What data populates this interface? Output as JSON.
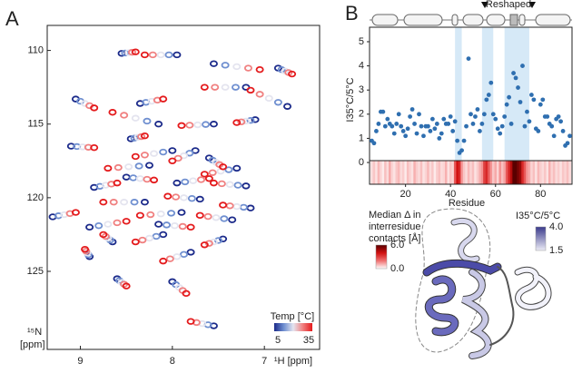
{
  "chart_data": [
    {
      "type": "nmr",
      "panel": "A",
      "xlabel": "¹H [ppm]",
      "ylabel": [
        "¹⁵N",
        "[ppm]"
      ],
      "xlim": [
        9.36,
        6.4
      ],
      "ylim": [
        130.3,
        108.3
      ],
      "xticks": [
        9,
        8,
        7
      ],
      "yticks": [
        110,
        115,
        120,
        125
      ],
      "series": [
        {
          "name": "5",
          "color": "#1b2a8a",
          "x": [
            8.55,
            7.95,
            7.55,
            6.85,
            7.2,
            6.75,
            9.05,
            8.15,
            7.55,
            8.0,
            9.1,
            7.3,
            7.2,
            8.85,
            8.3,
            7.7,
            9.3,
            8.9,
            7.9,
            7.35,
            8.1,
            7.8,
            8.6,
            8.0,
            7.55,
            8.25,
            7.75,
            8.5,
            7.95,
            8.15,
            8.65,
            7.45,
            8.35,
            7.1,
            8.9,
            7.15,
            8.45,
            7.6
          ],
          "values": [
            110.2,
            110.3,
            110.9,
            111.2,
            112.5,
            113.8,
            113.3,
            115.0,
            115.0,
            116.8,
            116.5,
            118.0,
            119.2,
            119.3,
            120.3,
            120.1,
            121.3,
            122.0,
            121.0,
            121.5,
            122.5,
            123.7,
            125.5,
            125.7,
            128.7,
            117.8,
            116.8,
            118.6,
            119.0,
            121.8,
            123.0,
            122.8,
            113.6,
            114.7,
            124.0,
            120.7,
            116.0,
            117.3
          ]
        },
        {
          "name": "35",
          "color": "#e41a1c",
          "x": [
            8.4,
            8.3,
            7.05,
            6.7,
            7.65,
            7.15,
            8.85,
            8.65,
            7.9,
            8.4,
            8.85,
            7.65,
            7.55,
            8.6,
            8.75,
            8.05,
            9.05,
            8.5,
            8.35,
            7.7,
            8.4,
            8.1,
            8.5,
            7.85,
            7.8,
            8.7,
            8.0,
            8.2,
            7.6,
            7.8,
            8.75,
            7.65,
            8.1,
            7.3,
            8.95,
            7.45,
            8.3,
            7.45
          ],
          "values": [
            110.1,
            110.3,
            111.3,
            111.6,
            112.5,
            112.7,
            113.9,
            114.2,
            115.1,
            117.2,
            116.6,
            118.4,
            119.0,
            119.0,
            120.3,
            119.9,
            121.0,
            121.6,
            121.2,
            121.2,
            123.0,
            124.3,
            126.0,
            126.5,
            128.4,
            118.0,
            117.5,
            118.8,
            118.7,
            122.0,
            122.5,
            123.2,
            113.3,
            114.9,
            123.5,
            120.5,
            115.8,
            117.9
          ]
        }
      ],
      "colorbar": {
        "title": "Temp [°C]",
        "colors": [
          "#1b2a8a",
          "#6f8fd0",
          "#e4e4ef",
          "#f08080",
          "#e41a1c"
        ]
      }
    },
    {
      "type": "scatter",
      "panel": "B",
      "xlabel": "Residue",
      "ylabel": "I35°C/5°C",
      "annotation": "Reshaped",
      "xlim": [
        4,
        94
      ],
      "ylim": [
        -0.9,
        5.6
      ],
      "xticks": [
        20,
        40,
        60,
        80
      ],
      "yticks": [
        0,
        1,
        2,
        3,
        4,
        5
      ],
      "color": "#2f6fb0",
      "highlights": [
        [
          42,
          45
        ],
        [
          54,
          59
        ],
        [
          64,
          75
        ]
      ],
      "x": [
        5,
        6,
        7,
        8,
        9,
        10,
        11,
        12,
        13,
        14,
        15,
        16,
        17,
        18,
        19,
        20,
        21,
        22,
        23,
        24,
        25,
        26,
        27,
        28,
        29,
        30,
        31,
        32,
        33,
        34,
        35,
        36,
        37,
        38,
        39,
        40,
        41,
        42,
        43,
        44,
        45,
        46,
        47,
        48,
        49,
        50,
        51,
        52,
        53,
        54,
        55,
        56,
        57,
        58,
        59,
        60,
        61,
        62,
        63,
        64,
        65,
        66,
        67,
        68,
        69,
        70,
        71,
        72,
        73,
        74,
        75,
        76,
        77,
        78,
        79,
        80,
        81,
        82,
        83,
        84,
        85,
        86,
        87,
        88,
        89,
        90,
        91,
        92,
        93
      ],
      "values": [
        0.9,
        0.8,
        1.3,
        1.6,
        2.1,
        2.1,
        1.5,
        1.8,
        1.6,
        1.5,
        1.2,
        1.6,
        2.0,
        1.5,
        1.3,
        1.1,
        1.4,
        1.9,
        2.2,
        1.6,
        1.2,
        2.0,
        1.5,
        1.1,
        1.5,
        1.5,
        1.3,
        1.8,
        1.4,
        1.6,
        1.0,
        1.2,
        1.8,
        1.6,
        1.6,
        1.9,
        1.3,
        1.7,
        0.9,
        0.4,
        0.5,
        0.9,
        1.5,
        4.3,
        2.0,
        1.6,
        1.9,
        2.2,
        1.3,
        1.6,
        2.0,
        2.6,
        2.8,
        3.3,
        2.0,
        1.8,
        1.4,
        1.2,
        1.5,
        1.9,
        2.4,
        2.7,
        1.6,
        3.7,
        3.5,
        3.1,
        2.5,
        4.0,
        1.5,
        2.1,
        1.7,
        2.8,
        2.6,
        1.4,
        1.3,
        2.4,
        2.6,
        1.9,
        1.9,
        1.6,
        1.5,
        1.1,
        1.8,
        1.9,
        1.7,
        1.3,
        0.7,
        0.8,
        1.1
      ],
      "heatmap": {
        "title": [
          "Median Δ in",
          "interresidue",
          "contacts [Å]"
        ],
        "colors": [
          "#ffffff",
          "#f07070",
          "#d01010",
          "#5a0000"
        ],
        "ticks": [
          {
            "value": 6,
            "label": "6.0"
          },
          {
            "value": 0,
            "label": "0.0"
          }
        ],
        "values": [
          0.5,
          0.8,
          0.4,
          1.0,
          0.6,
          0.3,
          0.9,
          0.5,
          1.2,
          0.6,
          0.4,
          0.8,
          1.0,
          0.5,
          0.7,
          0.3,
          0.9,
          0.6,
          0.4,
          1.1,
          0.7,
          0.5,
          0.9,
          0.4,
          0.6,
          1.0,
          0.5,
          0.8,
          0.3,
          0.7,
          0.9,
          0.5,
          0.6,
          1.1,
          0.4,
          0.8,
          0.6,
          2.5,
          4.0,
          3.5,
          1.5,
          0.8,
          0.5,
          1.0,
          0.6,
          0.9,
          0.4,
          0.7,
          1.1,
          1.5,
          3.0,
          3.5,
          2.5,
          1.5,
          0.8,
          1.2,
          0.6,
          1.5,
          0.9,
          1.3,
          2.5,
          3.5,
          4.5,
          6.0,
          6.0,
          5.5,
          5.0,
          3.5,
          2.5,
          1.5,
          1.2,
          0.6,
          0.9,
          0.4,
          1.0,
          0.7,
          0.5,
          0.8,
          0.4,
          1.1,
          0.6,
          0.9,
          0.5,
          0.7,
          0.4,
          0.8,
          0.6,
          0.9,
          0.5
        ]
      },
      "structure_colorbar": {
        "title": "I35°C/5°C",
        "colors": [
          "#ececf6",
          "#3a3a8c"
        ],
        "ticks": [
          {
            "value": 4,
            "label": "4.0"
          },
          {
            "value": 1.5,
            "label": "1.5"
          }
        ]
      }
    }
  ]
}
